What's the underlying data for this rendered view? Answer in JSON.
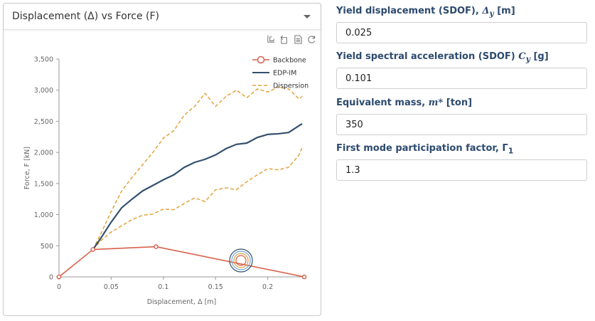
{
  "panel": {
    "title": "Displacement (Δ) vs Force (F)",
    "tools": [
      {
        "name": "zoom-icon"
      },
      {
        "name": "zoom-reset-icon"
      },
      {
        "name": "data-view-icon"
      },
      {
        "name": "restore-icon"
      }
    ]
  },
  "form": {
    "fields": [
      {
        "label_text": "Yield displacement (SDOF), ",
        "symbol": "Δ",
        "symbol_sub": "y",
        "unit": " [m]",
        "value": "0.025"
      },
      {
        "label_text": "Yield spectral acceleration (SDOF) ",
        "symbol": "C",
        "symbol_sub": "y",
        "unit": " [g]",
        "value": "0.101"
      },
      {
        "label_text": "Equivalent mass, ",
        "symbol": "m*",
        "symbol_sub": "",
        "unit": " [ton]",
        "value": "350"
      },
      {
        "label_text": "First mode participation factor, ",
        "symbol": "Γ",
        "symbol_sub": "1",
        "unit": "",
        "value": "1.3"
      }
    ]
  },
  "chart_data": {
    "type": "line",
    "xlabel": "Displacement, Δ [m]",
    "ylabel": "Force, F [kN]",
    "xlim": [
      0,
      0.235
    ],
    "ylim": [
      0,
      3500
    ],
    "xticks": [
      0,
      0.05,
      0.1,
      0.15,
      0.2
    ],
    "xtick_labels": [
      "0",
      "0.05",
      "0.1",
      "0.15",
      "0.2"
    ],
    "yticks": [
      0,
      500,
      1000,
      1500,
      2000,
      2500,
      3000,
      3500
    ],
    "ytick_labels": [
      "0",
      "500",
      "1,000",
      "1,500",
      "2,000",
      "2,500",
      "3,000",
      "3,500"
    ],
    "legend": [
      "Backbone",
      "EDP-IM",
      "Dispersion"
    ],
    "colors": {
      "backbone": "#d9604d",
      "edp": "#34506e",
      "dispersion": "#e3a33a",
      "axis": "#999999"
    },
    "series": [
      {
        "name": "Backbone",
        "x": [
          0,
          0.0325,
          0.093,
          0.235
        ],
        "y": [
          0,
          440,
          485,
          0
        ]
      },
      {
        "name": "EDP-IM",
        "x": [
          0.0325,
          0.04,
          0.05,
          0.06,
          0.07,
          0.08,
          0.09,
          0.1,
          0.11,
          0.12,
          0.13,
          0.14,
          0.15,
          0.16,
          0.17,
          0.18,
          0.19,
          0.2,
          0.21,
          0.22,
          0.23,
          0.233
        ],
        "y": [
          440,
          620,
          880,
          1110,
          1250,
          1380,
          1470,
          1560,
          1640,
          1760,
          1840,
          1890,
          1960,
          2060,
          2130,
          2150,
          2240,
          2290,
          2300,
          2320,
          2430,
          2460
        ]
      },
      {
        "name": "Dispersion upper",
        "x": [
          0.0325,
          0.04,
          0.05,
          0.06,
          0.07,
          0.08,
          0.09,
          0.1,
          0.11,
          0.12,
          0.13,
          0.14,
          0.15,
          0.16,
          0.17,
          0.18,
          0.19,
          0.2,
          0.21,
          0.22,
          0.23,
          0.233
        ],
        "y": [
          440,
          690,
          1050,
          1380,
          1600,
          1800,
          2000,
          2230,
          2350,
          2600,
          2740,
          2950,
          2740,
          2900,
          3000,
          2880,
          3020,
          2970,
          3050,
          3020,
          2860,
          2900
        ]
      },
      {
        "name": "Dispersion lower",
        "x": [
          0.0325,
          0.04,
          0.05,
          0.06,
          0.07,
          0.08,
          0.09,
          0.1,
          0.11,
          0.12,
          0.13,
          0.14,
          0.15,
          0.16,
          0.17,
          0.18,
          0.19,
          0.2,
          0.21,
          0.22,
          0.23,
          0.233
        ],
        "y": [
          440,
          580,
          720,
          820,
          920,
          990,
          1010,
          1090,
          1080,
          1180,
          1270,
          1210,
          1400,
          1430,
          1400,
          1530,
          1640,
          1740,
          1720,
          1760,
          1960,
          2080
        ]
      }
    ]
  }
}
